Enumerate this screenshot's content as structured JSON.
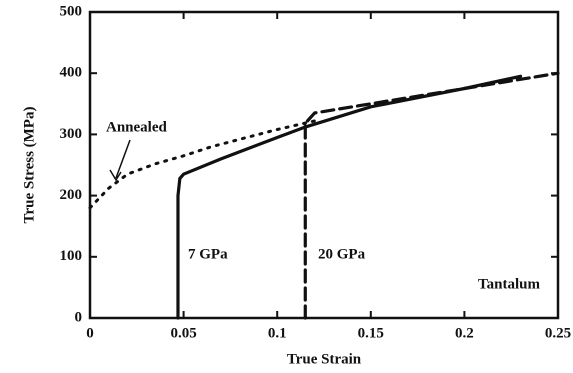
{
  "chart_data": {
    "type": "line",
    "x_label": "True Strain",
    "y_label": "True Stress (MPa)",
    "annotations": [
      "Annealed",
      "7 GPa",
      "20 GPa",
      "Tantalum"
    ],
    "xlim": [
      0,
      0.25
    ],
    "xticks": [
      0,
      0.05,
      0.1,
      0.15,
      0.2,
      0.25
    ],
    "ylim": [
      0,
      500
    ],
    "yticks": [
      0,
      100,
      200,
      300,
      400,
      500
    ],
    "series": [
      {
        "name": "Annealed",
        "color": "#111111",
        "line_style": "dotted",
        "x": [
          0,
          0.01,
          0.02,
          0.035,
          0.05,
          0.065,
          0.08,
          0.1,
          0.12
        ],
        "values": [
          180,
          212,
          235,
          252,
          265,
          280,
          292,
          308,
          322
        ]
      },
      {
        "name": "7 GPa",
        "color": "#111111",
        "line_style": "solid",
        "x": [
          0.047,
          0.047,
          0.048,
          0.05,
          0.07,
          0.1,
          0.115,
          0.15,
          0.2,
          0.23
        ],
        "values": [
          0,
          200,
          228,
          235,
          260,
          295,
          312,
          345,
          375,
          395
        ]
      },
      {
        "name": "20 GPa",
        "color": "#111111",
        "line_style": "dashed",
        "x": [
          0.115,
          0.115,
          0.12,
          0.15,
          0.2,
          0.25
        ],
        "values": [
          0,
          318,
          335,
          350,
          375,
          400
        ]
      }
    ]
  }
}
